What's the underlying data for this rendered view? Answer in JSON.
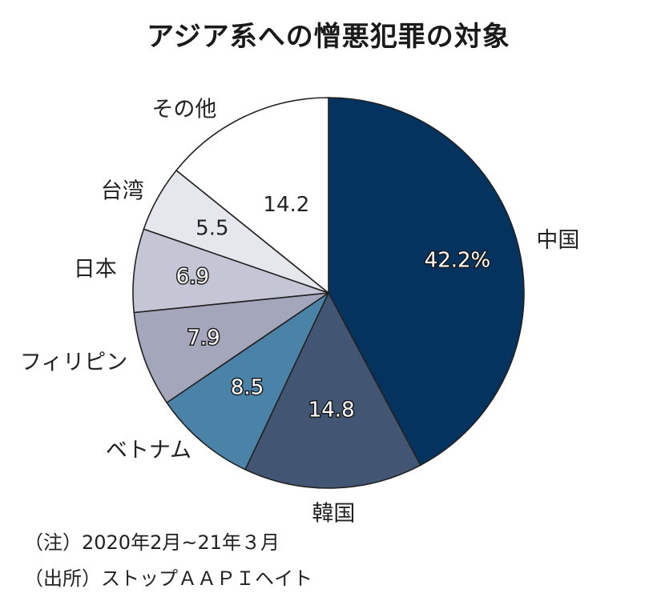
{
  "chart_data": {
    "type": "pie",
    "title": "アジア系への憎悪犯罪の対象",
    "unit": "%",
    "slices": [
      {
        "label": "中国",
        "value": 42.2,
        "value_text": "42.2%",
        "color": "#04335f",
        "text_color": "#ffffff"
      },
      {
        "label": "韓国",
        "value": 14.8,
        "value_text": "14.8",
        "color": "#425674",
        "text_color": "#ffffff"
      },
      {
        "label": "ベトナム",
        "value": 8.5,
        "value_text": "8.5",
        "color": "#4a82a8",
        "text_color": "#ffffff"
      },
      {
        "label": "フィリピン",
        "value": 7.9,
        "value_text": "7.9",
        "color": "#a4a6bb",
        "text_color": "#ffffff"
      },
      {
        "label": "日本",
        "value": 6.9,
        "value_text": "6.9",
        "color": "#c4c6d6",
        "text_color": "#ffffff"
      },
      {
        "label": "台湾",
        "value": 5.5,
        "value_text": "5.5",
        "color": "#e6e7ed",
        "text_color": "#222222"
      },
      {
        "label": "その他",
        "value": 14.2,
        "value_text": "14.2",
        "color": "#ffffff",
        "text_color": "#222222"
      }
    ]
  },
  "notes": {
    "period": "（注）2020年2月~21年３月",
    "source": "（出所）ストップＡＡＰＩヘイト"
  }
}
